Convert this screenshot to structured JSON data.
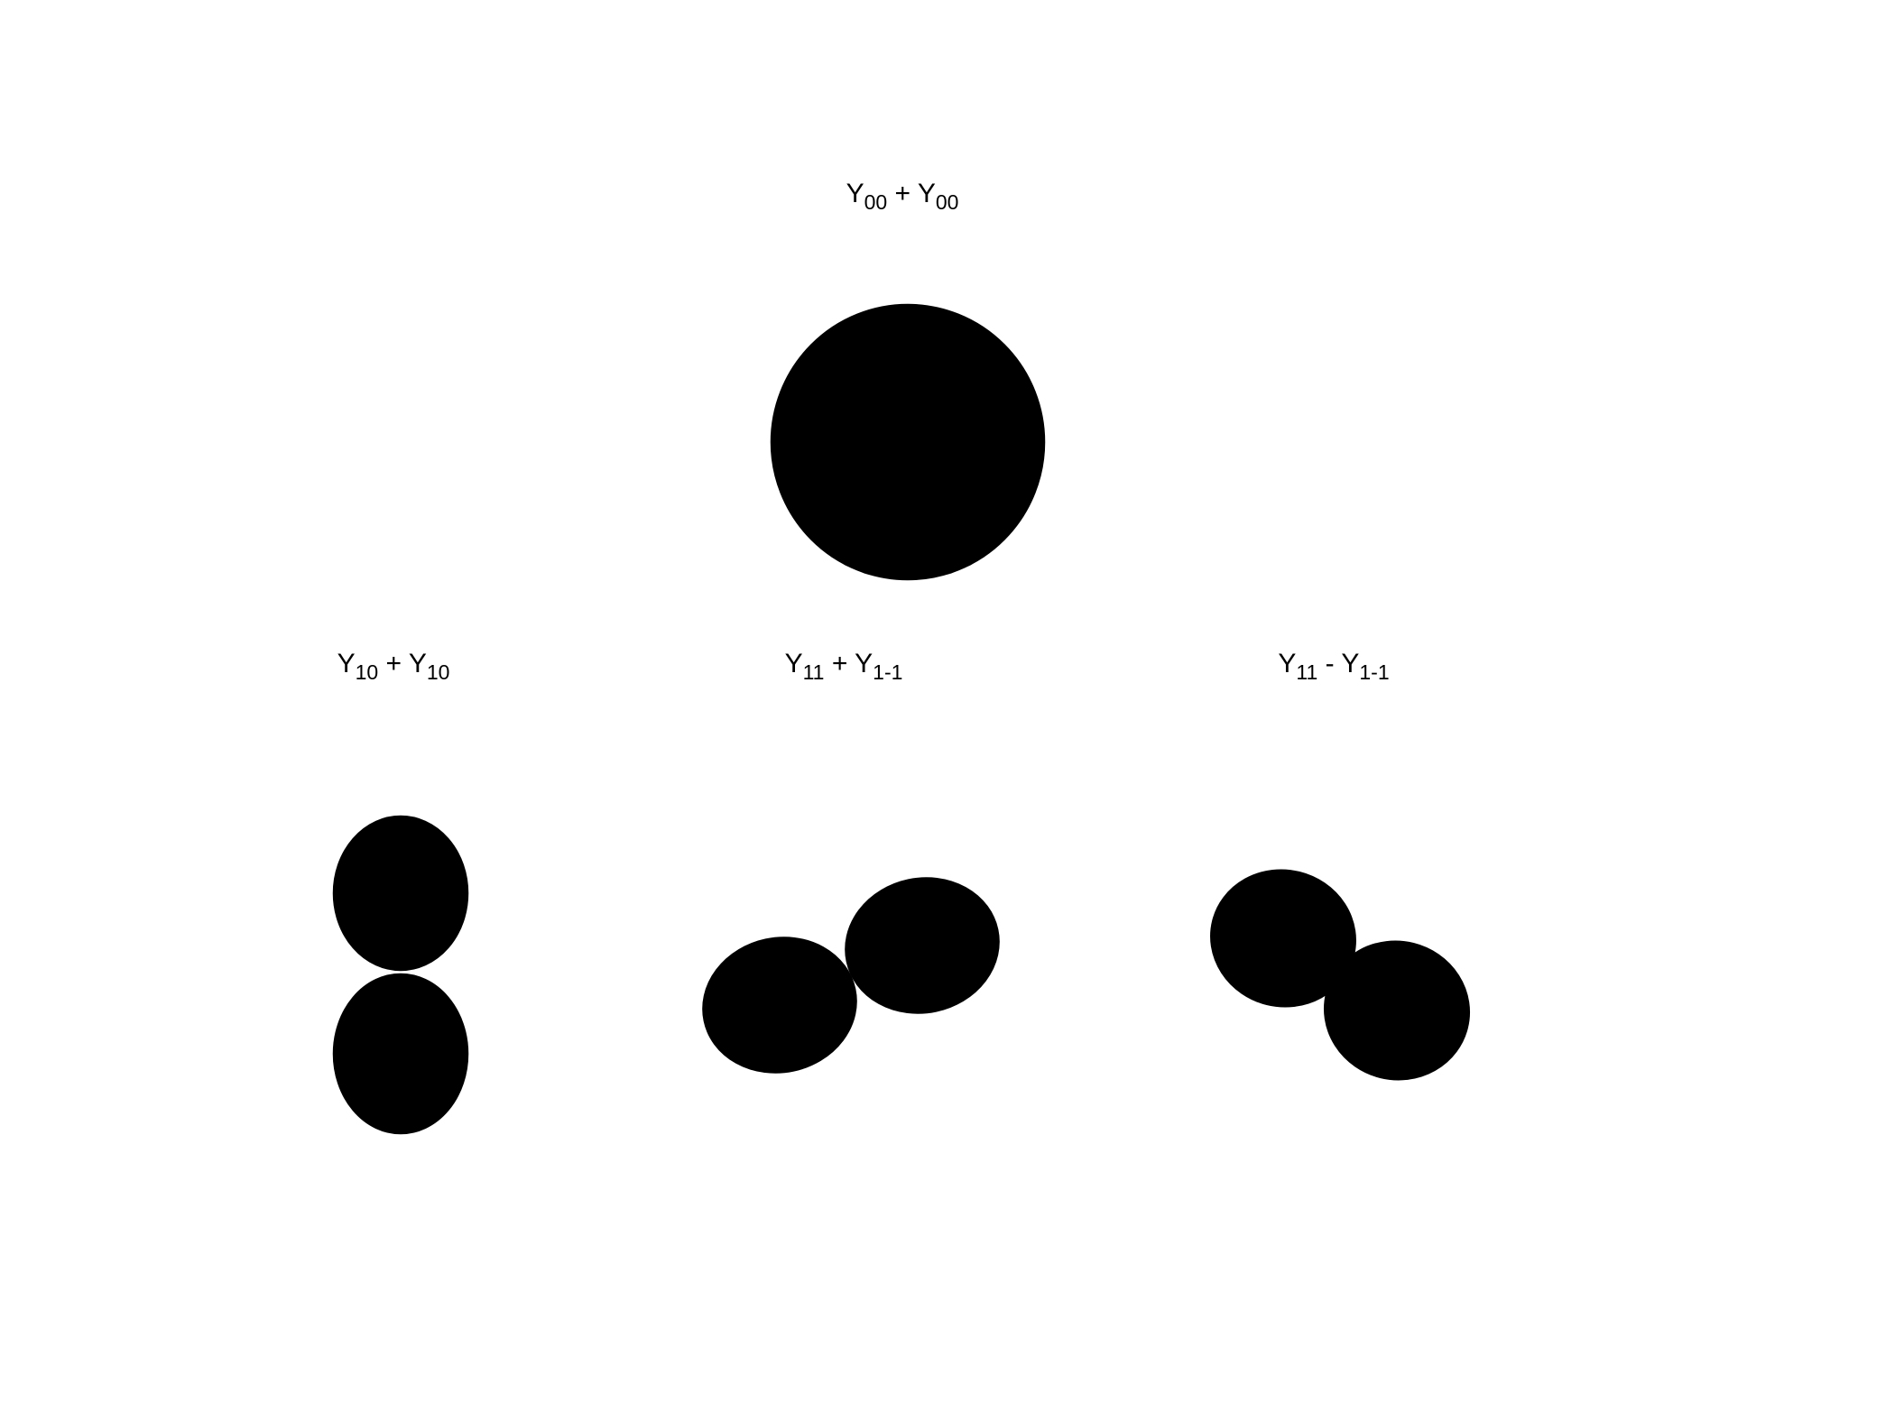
{
  "figure": {
    "panels": [
      {
        "id": "y00",
        "title": {
          "base1": "Y",
          "sub1": "00",
          "op": " + ",
          "base2": "Y",
          "sub2": "00"
        },
        "shape": "sphere"
      },
      {
        "id": "y10",
        "title": {
          "base1": "Y",
          "sub1": "10",
          "op": " + ",
          "base2": "Y",
          "sub2": "10"
        },
        "shape": "dumbbell-vertical"
      },
      {
        "id": "y11p",
        "title": {
          "base1": "Y",
          "sub1": "11",
          "op": " + ",
          "base2": "Y",
          "sub2": "1-1"
        },
        "shape": "dumbbell-tilted"
      },
      {
        "id": "y11m",
        "title": {
          "base1": "Y",
          "sub1": "11",
          "op": " - ",
          "base2": "Y",
          "sub2": "1-1"
        },
        "shape": "dumbbell-tilted"
      }
    ],
    "colormap": [
      "#7a0f12",
      "#c8442b",
      "#c9a12a",
      "#6f9a2a",
      "#1f7f7a",
      "#14426e",
      "#0a1a3a"
    ]
  }
}
